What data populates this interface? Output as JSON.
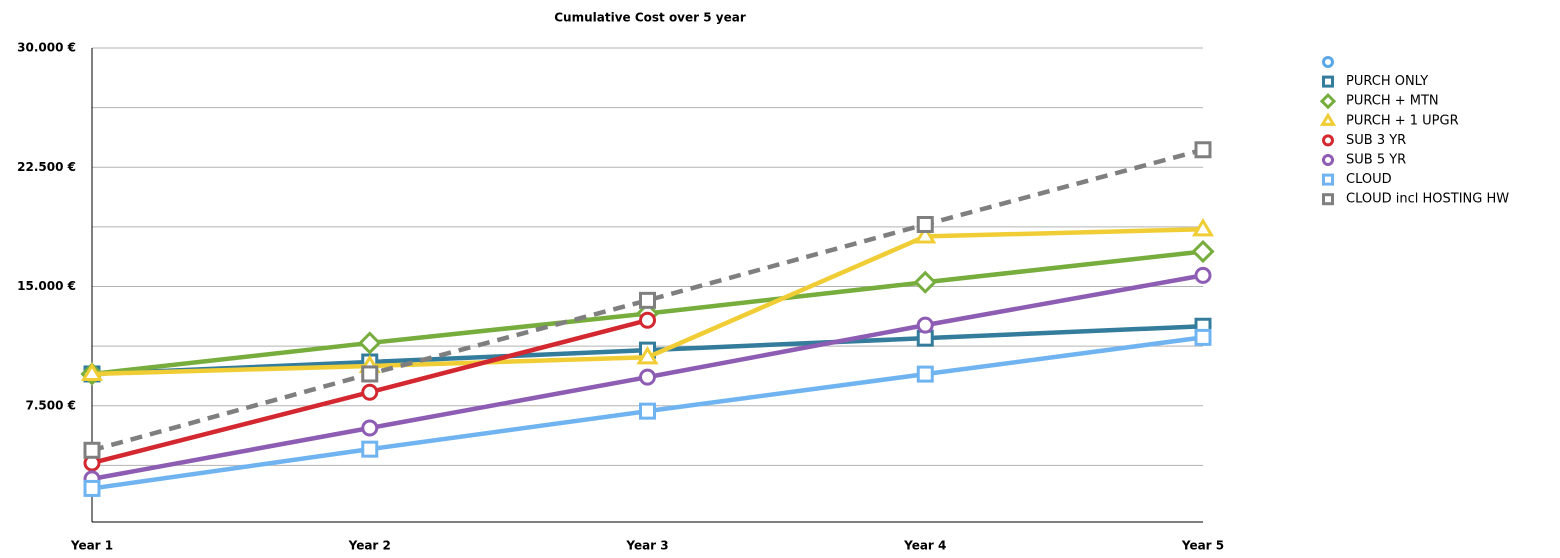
{
  "chart_data": {
    "type": "line",
    "title": "Cumulative Cost over 5 year",
    "categories": [
      "Year 1",
      "Year 2",
      "Year 3",
      "Year 4",
      "Year 5"
    ],
    "ylim": [
      0,
      30000
    ],
    "yticks": [
      {
        "value": 7500,
        "label": "7.500 €"
      },
      {
        "value": 15000,
        "label": "15.000 €"
      },
      {
        "value": 22500,
        "label": "22.500 €"
      },
      {
        "value": 30000,
        "label": "30.000 €"
      }
    ],
    "minor_yticks": [
      3750,
      11250,
      18750,
      26250
    ],
    "grid": true,
    "legend": "right",
    "series": [
      {
        "name": null,
        "color": "#5aa7e8",
        "marker": "circle",
        "values": [
          null,
          null,
          null,
          null,
          null
        ]
      },
      {
        "name": "PURCH ONLY",
        "color": "#347c9b",
        "marker": "square",
        "values": [
          9500,
          10250,
          11000,
          11750,
          12500
        ]
      },
      {
        "name": "PURCH + MTN",
        "color": "#77ad3c",
        "marker": "diamond",
        "values": [
          9500,
          11450,
          13300,
          15270,
          17200
        ]
      },
      {
        "name": "PURCH + 1 UPGR",
        "color": "#f0cd35",
        "marker": "triangle",
        "values": [
          9500,
          10000,
          10550,
          18150,
          18600
        ]
      },
      {
        "name": "SUB 3 YR",
        "color": "#d3282f",
        "marker": "circle",
        "values": [
          3900,
          8350,
          12880,
          null,
          null
        ]
      },
      {
        "name": "SUB 5 YR",
        "color": "#8d5cb3",
        "marker": "circle",
        "values": [
          2900,
          6100,
          9300,
          12570,
          15700
        ]
      },
      {
        "name": "CLOUD",
        "color": "#6fb4f0",
        "marker": "square",
        "values": [
          2300,
          4770,
          7160,
          9490,
          11800
        ]
      },
      {
        "name": "CLOUD incl HOSTING HW",
        "color": "#7f7f7f",
        "marker": "square",
        "dash": true,
        "values": [
          4700,
          9500,
          14130,
          18900,
          23600
        ]
      }
    ]
  }
}
